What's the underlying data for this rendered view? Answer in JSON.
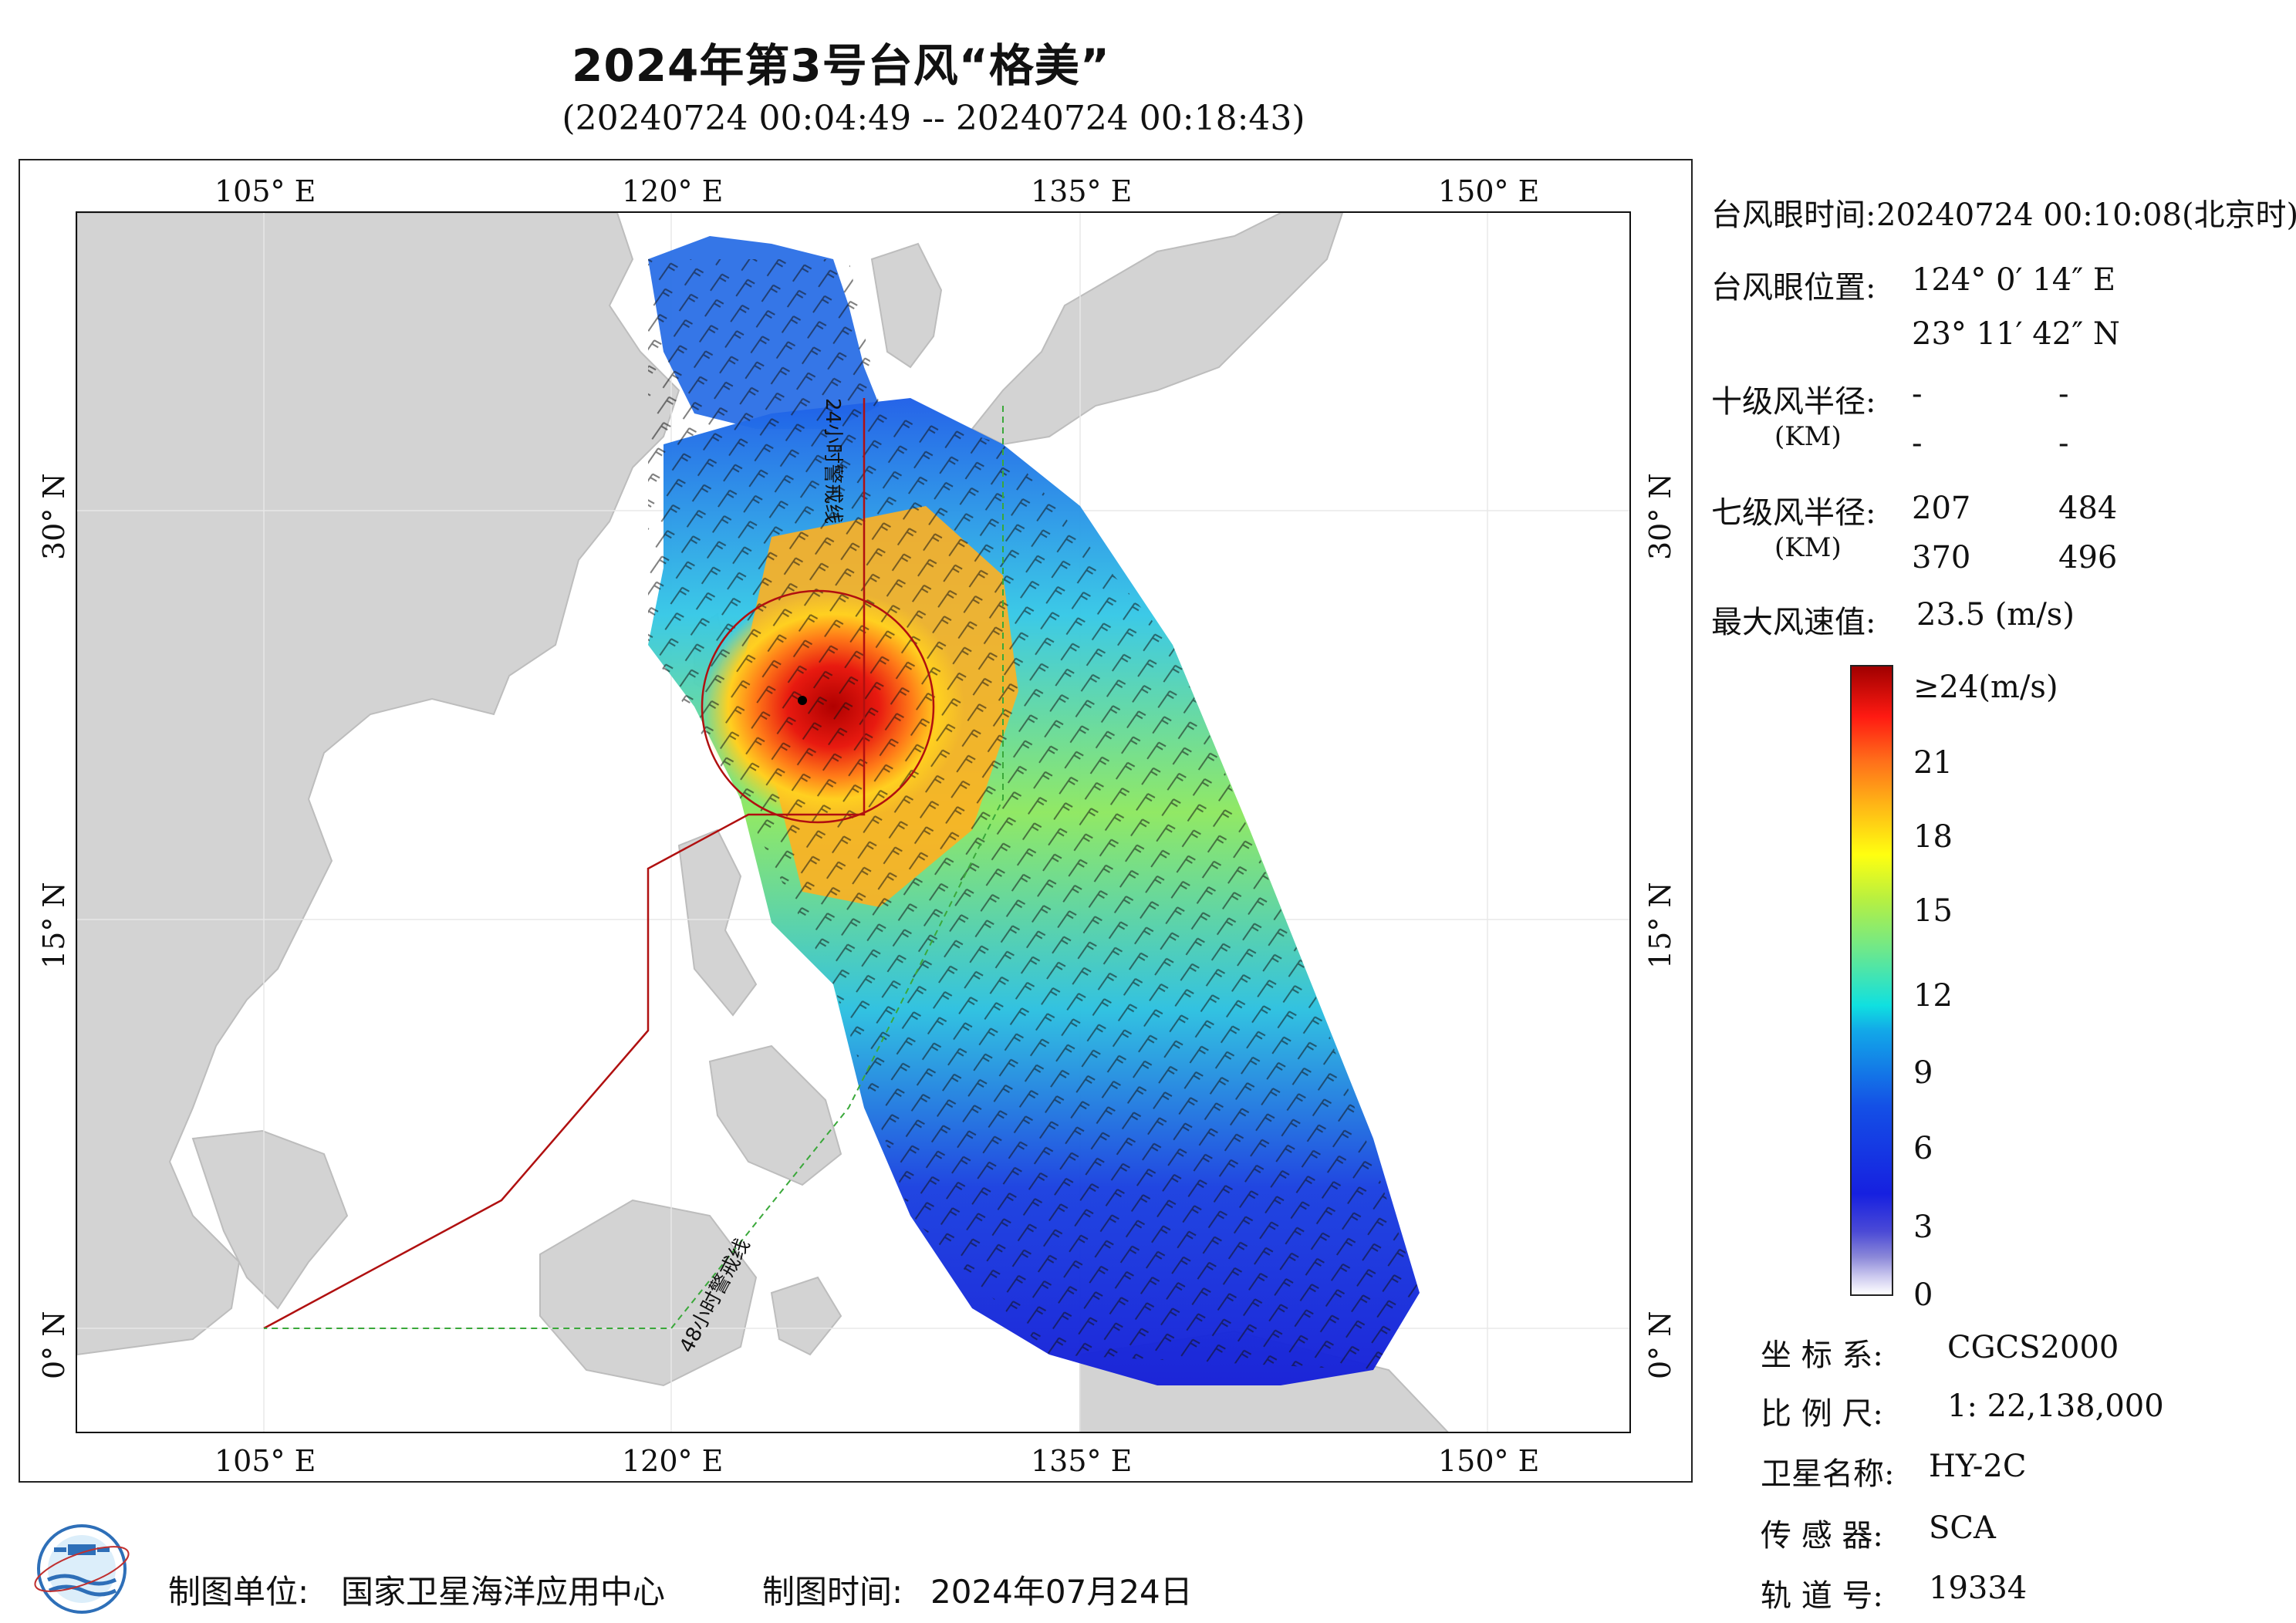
{
  "header": {
    "title": "2024年第3号台风“格美”",
    "subtitle": "(20240724 00:04:49 -- 20240724 00:18:43)"
  },
  "axes": {
    "lon_top": [
      "105° E",
      "120° E",
      "135° E",
      "150° E"
    ],
    "lon_bottom": [
      "105° E",
      "120° E",
      "135° E",
      "150° E"
    ],
    "lat_left": [
      "30° N",
      "15° N",
      "0° N"
    ],
    "lat_right": [
      "30° N",
      "15° N",
      "0° N"
    ]
  },
  "map": {
    "warning_24h": "24小时警戒线",
    "warning_48h": "48小时警戒线",
    "colors": {
      "land": "#d3d3d3",
      "sea": "#ffffff",
      "line_24h": "#b01010",
      "line_48h": "#3aa83a"
    }
  },
  "info": {
    "eye_time_label": "台风眼时间:",
    "eye_time_value": "20240724 00:10:08(北京时)",
    "eye_pos_label": "台风眼位置:",
    "eye_lon": "124° 0′ 14″ E",
    "eye_lat": "23° 11′ 42″ N",
    "r10_label": "十级风半径:",
    "r10_unit": "(KM)",
    "r10_values": [
      "-",
      "-",
      "-",
      "-"
    ],
    "r7_label": "七级风半径:",
    "r7_unit": "(KM)",
    "r7_values": [
      "207",
      "484",
      "370",
      "496"
    ],
    "max_wind_label": "最大风速值:",
    "max_wind_value": "23.5  (m/s)"
  },
  "colorbar": {
    "labels": [
      "≥24(m/s)",
      "21",
      "18",
      "15",
      "12",
      "9",
      "6",
      "3",
      "0"
    ]
  },
  "meta": {
    "crs_label": "坐 标 系:",
    "crs_value": "CGCS2000",
    "scale_label": "比 例 尺:",
    "scale_value": "1: 22,138,000",
    "sat_label": "卫星名称:",
    "sat_value": "HY-2C",
    "sensor_label": "传 感 器:",
    "sensor_value": "SCA",
    "orbit_label": "轨 道 号:",
    "orbit_value": "19334"
  },
  "footer": {
    "unit_label": "制图单位:",
    "unit_value": "国家卫星海洋应用中心",
    "time_label": "制图时间:",
    "time_value": "2024年07月24日"
  }
}
